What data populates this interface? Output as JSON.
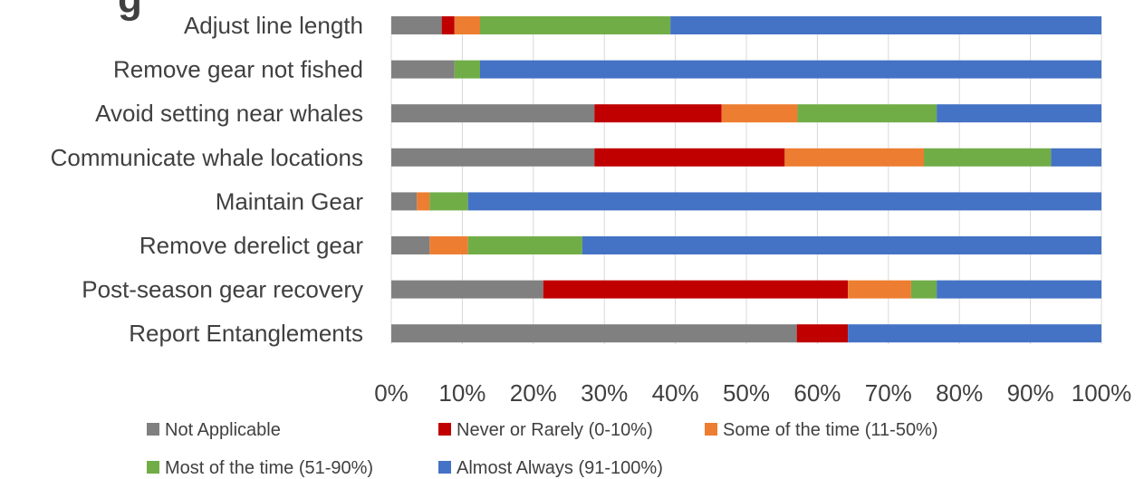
{
  "chart_data": {
    "type": "bar",
    "orientation": "horizontal",
    "stacked": true,
    "title": "",
    "xlabel": "",
    "ylabel": "",
    "xlim": [
      0,
      100
    ],
    "x_ticks": [
      0,
      10,
      20,
      30,
      40,
      50,
      60,
      70,
      80,
      90,
      100
    ],
    "x_tick_labels": [
      "0%",
      "10%",
      "20%",
      "30%",
      "40%",
      "50%",
      "60%",
      "70%",
      "80%",
      "90%",
      "100%"
    ],
    "grid": true,
    "legend_position": "bottom",
    "categories": [
      "Adjust line length",
      "Remove gear not fished",
      "Avoid setting near whales",
      "Communicate whale locations",
      "Maintain Gear",
      "Remove derelict gear",
      "Post-season gear recovery",
      "Report Entanglements"
    ],
    "series": [
      {
        "name": "Not Applicable",
        "color": "#808080",
        "values": [
          7.1,
          8.9,
          28.6,
          28.6,
          3.6,
          5.4,
          21.4,
          57.1
        ]
      },
      {
        "name": "Never or Rarely (0-10%)",
        "color": "#c00000",
        "values": [
          1.8,
          0,
          17.9,
          26.8,
          0,
          0,
          42.9,
          7.2
        ]
      },
      {
        "name": "Some of the time (11-50%)",
        "color": "#ed7d31",
        "values": [
          3.6,
          0,
          10.7,
          19.6,
          1.8,
          5.4,
          8.9,
          0
        ]
      },
      {
        "name": "Most of the time (51-90%)",
        "color": "#70ad47",
        "values": [
          26.8,
          3.6,
          19.6,
          17.9,
          5.4,
          16.1,
          3.6,
          0
        ]
      },
      {
        "name": "Almost Always (91-100%)",
        "color": "#4472c4",
        "values": [
          60.7,
          87.5,
          23.2,
          7.1,
          89.2,
          73.1,
          23.2,
          35.7
        ]
      }
    ]
  }
}
